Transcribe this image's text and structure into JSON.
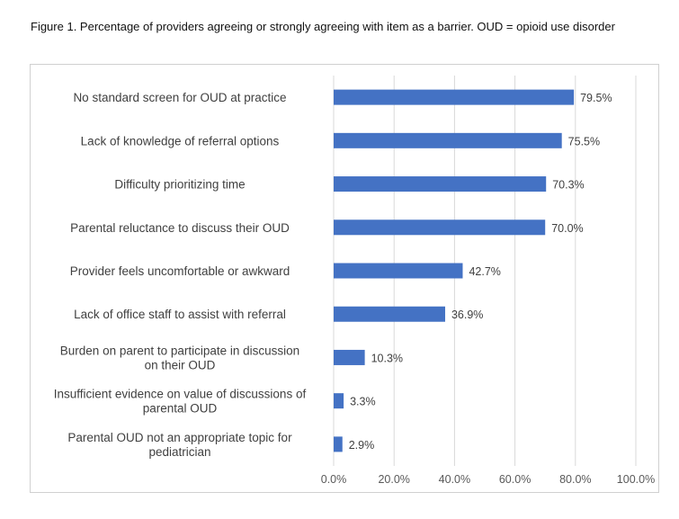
{
  "caption": "Figure 1. Percentage of providers agreeing or strongly agreeing with item as a barrier. OUD = opioid use disorder",
  "chart_data": {
    "type": "bar",
    "orientation": "horizontal",
    "categories": [
      [
        "No standard screen for OUD at practice"
      ],
      [
        "Lack of knowledge of referral options"
      ],
      [
        "Difficulty prioritizing time"
      ],
      [
        "Parental reluctance to discuss their OUD"
      ],
      [
        "Provider feels uncomfortable or awkward"
      ],
      [
        "Lack of office staff to assist with referral"
      ],
      [
        "Burden on parent to participate in discussion",
        "on their OUD"
      ],
      [
        "Insufficient evidence on value of discussions of",
        "parental OUD"
      ],
      [
        "Parental OUD not an appropriate topic for",
        "pediatrician"
      ]
    ],
    "values": [
      79.5,
      75.5,
      70.3,
      70.0,
      42.7,
      36.9,
      10.3,
      3.3,
      2.9
    ],
    "data_labels": [
      "79.5%",
      "75.5%",
      "70.3%",
      "70.0%",
      "42.7%",
      "36.9%",
      "10.3%",
      "3.3%",
      "2.9%"
    ],
    "xlim": [
      0,
      100
    ],
    "x_ticks": [
      0,
      20,
      40,
      60,
      80,
      100
    ],
    "x_tick_labels": [
      "0.0%",
      "20.0%",
      "40.0%",
      "60.0%",
      "80.0%",
      "100.0%"
    ],
    "grid": true,
    "bar_color": "#4472C4",
    "grid_color": "#d9d9d9",
    "title": "",
    "xlabel": "",
    "ylabel": ""
  }
}
